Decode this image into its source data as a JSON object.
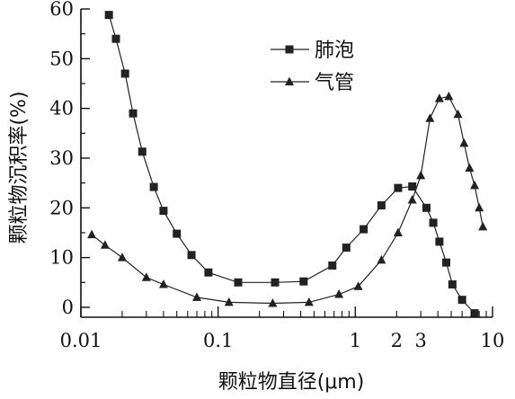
{
  "chart_data": {
    "type": "line",
    "title": "",
    "xlabel": "颗粒物直径(μm)",
    "ylabel": "颗粒物沉积率(%)",
    "x_scale": "log",
    "xlim": [
      0.01,
      10
    ],
    "ylim": [
      -2,
      60
    ],
    "x_tick_labels": [
      {
        "value": 0.01,
        "label": "0.01"
      },
      {
        "value": 0.1,
        "label": "0.1"
      },
      {
        "value": 1,
        "label": "1"
      },
      {
        "value": 2,
        "label": "2"
      },
      {
        "value": 3,
        "label": "3"
      },
      {
        "value": 10,
        "label": "10"
      }
    ],
    "y_ticks": [
      0,
      10,
      20,
      30,
      40,
      50,
      60
    ],
    "grid": false,
    "legend_position": "top-center",
    "series": [
      {
        "name": "肺泡",
        "marker": "square",
        "points": [
          [
            0.016,
            58.8
          ],
          [
            0.018,
            54.0
          ],
          [
            0.021,
            47.0
          ],
          [
            0.024,
            39.0
          ],
          [
            0.028,
            31.3
          ],
          [
            0.034,
            24.2
          ],
          [
            0.04,
            19.4
          ],
          [
            0.05,
            14.8
          ],
          [
            0.064,
            10.5
          ],
          [
            0.085,
            7.0
          ],
          [
            0.14,
            5.0
          ],
          [
            0.26,
            5.0
          ],
          [
            0.42,
            5.2
          ],
          [
            0.68,
            8.4
          ],
          [
            0.86,
            12.0
          ],
          [
            1.15,
            15.7
          ],
          [
            1.55,
            20.5
          ],
          [
            2.05,
            24.0
          ],
          [
            2.6,
            24.3
          ],
          [
            3.3,
            20.0
          ],
          [
            3.7,
            17.0
          ],
          [
            4.1,
            13.2
          ],
          [
            4.6,
            9.0
          ],
          [
            5.1,
            4.6
          ],
          [
            6.0,
            1.5
          ],
          [
            7.4,
            -1.2
          ]
        ]
      },
      {
        "name": "气管",
        "marker": "triangle",
        "points": [
          [
            0.012,
            14.6
          ],
          [
            0.015,
            12.5
          ],
          [
            0.02,
            10.0
          ],
          [
            0.03,
            6.0
          ],
          [
            0.04,
            4.6
          ],
          [
            0.07,
            2.0
          ],
          [
            0.12,
            1.0
          ],
          [
            0.25,
            0.8
          ],
          [
            0.46,
            1.0
          ],
          [
            0.76,
            2.6
          ],
          [
            1.05,
            4.2
          ],
          [
            1.55,
            9.5
          ],
          [
            2.05,
            15.0
          ],
          [
            2.6,
            21.6
          ],
          [
            3.0,
            26.5
          ],
          [
            3.5,
            38.0
          ],
          [
            4.1,
            42.0
          ],
          [
            4.8,
            42.4
          ],
          [
            5.6,
            38.8
          ],
          [
            6.2,
            33.0
          ],
          [
            6.8,
            28.0
          ],
          [
            7.4,
            24.5
          ],
          [
            8.0,
            20.0
          ],
          [
            8.5,
            16.2
          ]
        ]
      }
    ]
  }
}
